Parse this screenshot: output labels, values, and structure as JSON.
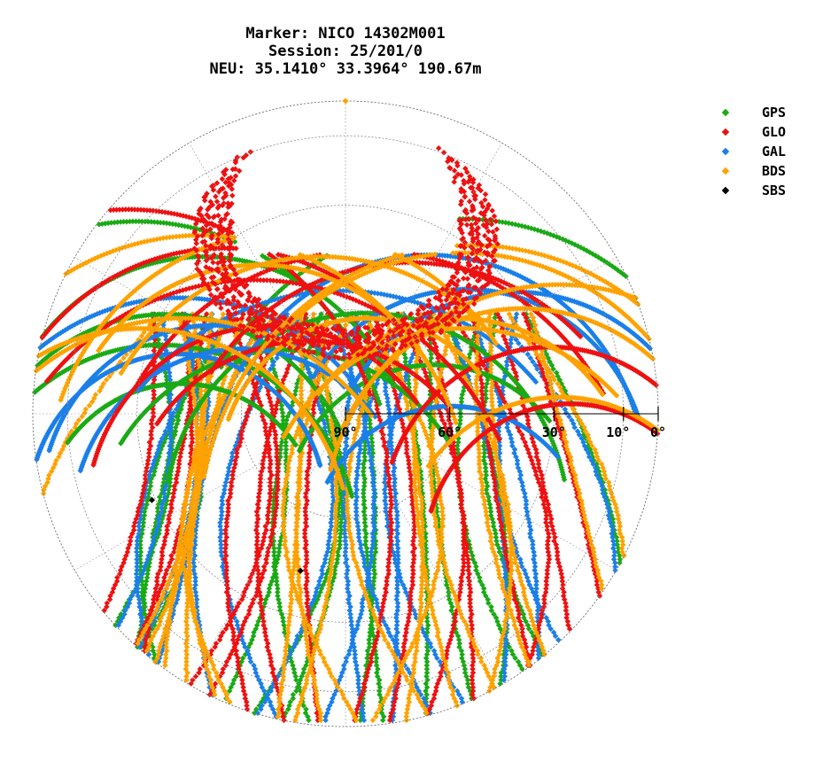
{
  "title": {
    "line1": "Marker: NICO 14302M001",
    "line2": "Session: 25/201/0",
    "line3": "NEU: 35.1410° 33.3964° 190.67m"
  },
  "legend": [
    {
      "label": "GPS",
      "color": "#1aaa14"
    },
    {
      "label": "GLO",
      "color": "#ee1111"
    },
    {
      "label": "GAL",
      "color": "#1a7fe8"
    },
    {
      "label": "BDS",
      "color": "#ffa200"
    },
    {
      "label": "SBS",
      "color": "#000000"
    }
  ],
  "chart_data": {
    "type": "scatter",
    "projection": "polar skyplot (azimuth/elevation)",
    "elevation_tick_labels": [
      "90°",
      "60°",
      "30°",
      "10°",
      "0°"
    ],
    "elevation_ticks_deg": [
      90,
      60,
      30,
      10,
      0
    ],
    "elevation_rings_deg": [
      0,
      10,
      30,
      60
    ],
    "series": [
      {
        "name": "GPS",
        "color": "#1aaa14"
      },
      {
        "name": "GLO",
        "color": "#ee1111"
      },
      {
        "name": "GAL",
        "color": "#1a7fe8"
      },
      {
        "name": "BDS",
        "color": "#ffa200"
      },
      {
        "name": "SBS",
        "color": "#000000",
        "points": [
          {
            "az": 246,
            "el": 29
          },
          {
            "az": 196,
            "el": 43
          }
        ]
      }
    ],
    "grid": true,
    "legend_position": "right"
  }
}
